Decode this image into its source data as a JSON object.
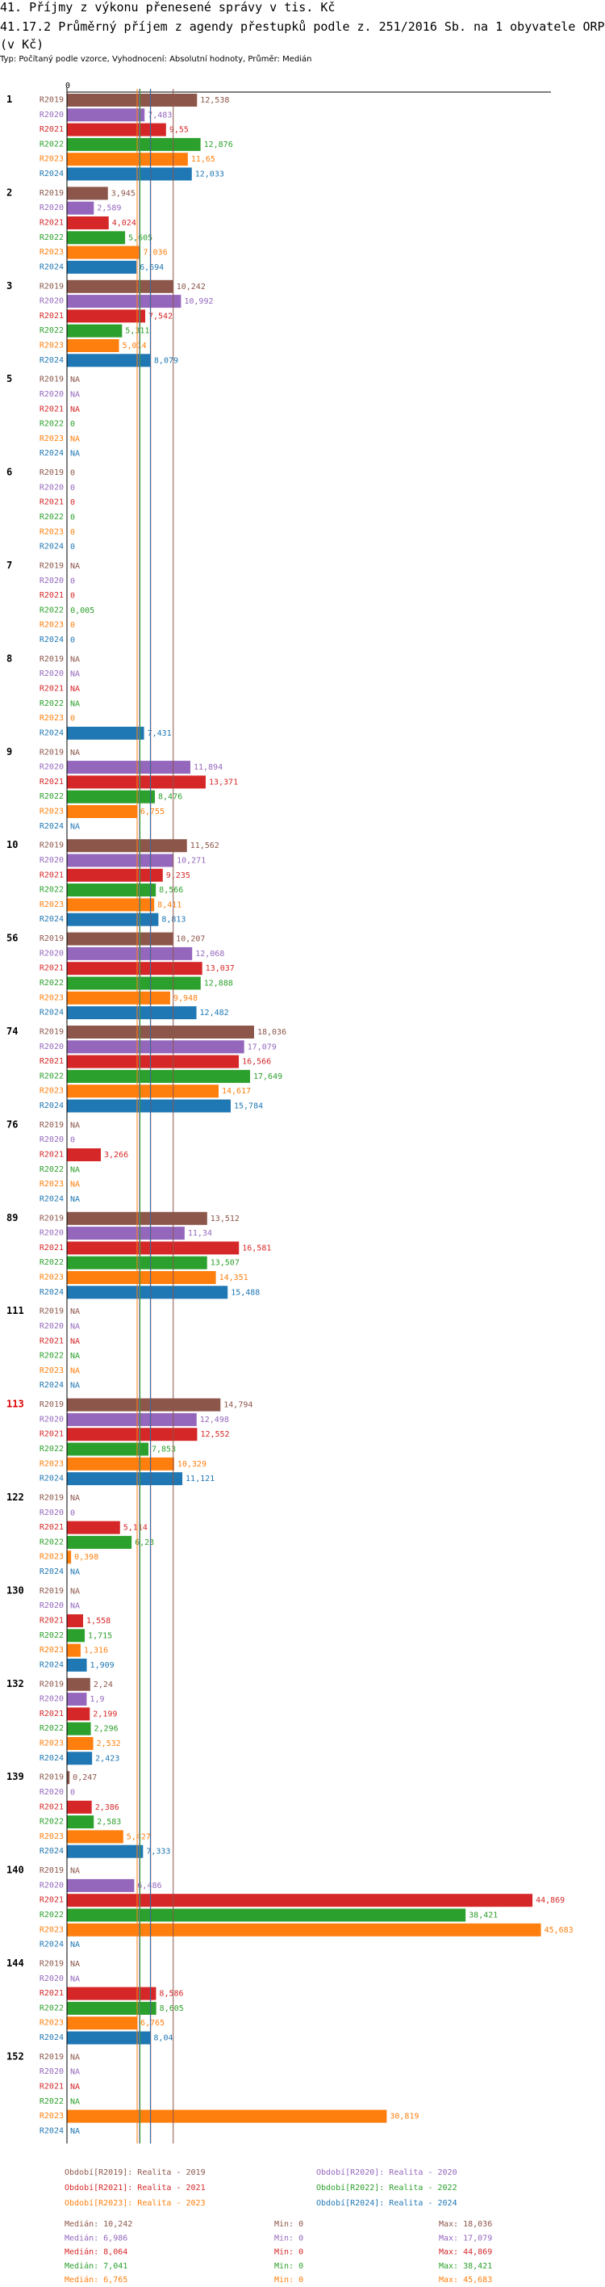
{
  "header": {
    "title": "41. Příjmy z výkonu přenesené správy v tis. Kč",
    "subtitle": "41.17.2 Průměrný příjem z agendy přestupků podle z. 251/2016 Sb. na 1 obyvatele ORP (v Kč)",
    "type_line": "Typ: Počítaný podle vzorce, Vyhodnocení: Absolutní hodnoty, Průměr: Medián"
  },
  "chart_data": {
    "type": "bar",
    "orientation": "horizontal",
    "axis_zero_label": "0",
    "xlim": [
      0,
      46.65
    ],
    "series": [
      {
        "key": "R2019",
        "color": "#8c564b"
      },
      {
        "key": "R2020",
        "color": "#9467bd"
      },
      {
        "key": "R2021",
        "color": "#d62728"
      },
      {
        "key": "R2022",
        "color": "#2ca02c"
      },
      {
        "key": "R2023",
        "color": "#ff7f0e"
      },
      {
        "key": "R2024",
        "color": "#1f77b4"
      }
    ],
    "groups": [
      {
        "label": "1",
        "highlight": false,
        "values": [
          "12,538",
          "7,483",
          "9,55",
          "12,876",
          "11,65",
          "12,033"
        ]
      },
      {
        "label": "2",
        "highlight": false,
        "values": [
          "3,945",
          "2,589",
          "4,024",
          "5,605",
          "7,036",
          "6,694"
        ]
      },
      {
        "label": "3",
        "highlight": false,
        "values": [
          "10,242",
          "10,992",
          "7,542",
          "5,311",
          "5,014",
          "8,079"
        ]
      },
      {
        "label": "5",
        "highlight": false,
        "values": [
          "NA",
          "NA",
          "NA",
          "0",
          "NA",
          "NA"
        ]
      },
      {
        "label": "6",
        "highlight": false,
        "values": [
          "0",
          "0",
          "0",
          "0",
          "0",
          "0"
        ]
      },
      {
        "label": "7",
        "highlight": false,
        "values": [
          "NA",
          "0",
          "0",
          "0,005",
          "0",
          "0"
        ]
      },
      {
        "label": "8",
        "highlight": false,
        "values": [
          "NA",
          "NA",
          "NA",
          "NA",
          "0",
          "7,431"
        ]
      },
      {
        "label": "9",
        "highlight": false,
        "values": [
          "NA",
          "11,894",
          "13,371",
          "8,476",
          "6,755",
          "NA"
        ]
      },
      {
        "label": "10",
        "highlight": false,
        "values": [
          "11,562",
          "10,271",
          "9,235",
          "8,566",
          "8,411",
          "8,813"
        ]
      },
      {
        "label": "56",
        "highlight": false,
        "values": [
          "10,207",
          "12,068",
          "13,037",
          "12,888",
          "9,948",
          "12,482"
        ]
      },
      {
        "label": "74",
        "highlight": false,
        "values": [
          "18,036",
          "17,079",
          "16,566",
          "17,649",
          "14,617",
          "15,784"
        ]
      },
      {
        "label": "76",
        "highlight": false,
        "values": [
          "NA",
          "0",
          "3,266",
          "NA",
          "NA",
          "NA"
        ]
      },
      {
        "label": "89",
        "highlight": false,
        "values": [
          "13,512",
          "11,34",
          "16,581",
          "13,507",
          "14,351",
          "15,488"
        ]
      },
      {
        "label": "111",
        "highlight": false,
        "values": [
          "NA",
          "NA",
          "NA",
          "NA",
          "NA",
          "NA"
        ]
      },
      {
        "label": "113",
        "highlight": true,
        "values": [
          "14,794",
          "12,498",
          "12,552",
          "7,853",
          "10,329",
          "11,121"
        ]
      },
      {
        "label": "122",
        "highlight": false,
        "values": [
          "NA",
          "0",
          "5,114",
          "6,23",
          "0,398",
          "NA"
        ]
      },
      {
        "label": "130",
        "highlight": false,
        "values": [
          "NA",
          "NA",
          "1,558",
          "1,715",
          "1,316",
          "1,909"
        ]
      },
      {
        "label": "132",
        "highlight": false,
        "values": [
          "2,24",
          "1,9",
          "2,199",
          "2,296",
          "2,532",
          "2,423"
        ]
      },
      {
        "label": "139",
        "highlight": false,
        "values": [
          "0,247",
          "0",
          "2,386",
          "2,583",
          "5,427",
          "7,333"
        ]
      },
      {
        "label": "140",
        "highlight": false,
        "values": [
          "NA",
          "6,486",
          "44,869",
          "38,421",
          "45,683",
          "NA"
        ]
      },
      {
        "label": "144",
        "highlight": false,
        "values": [
          "NA",
          "NA",
          "8,586",
          "8,605",
          "6,765",
          "8,04"
        ]
      },
      {
        "label": "152",
        "highlight": false,
        "values": [
          "NA",
          "NA",
          "NA",
          "NA",
          "30,819",
          "NA"
        ]
      }
    ],
    "median_lines": [
      10.242,
      6.986,
      8.064,
      7.041,
      6.765,
      8.04
    ],
    "legend": [
      "Období[R2019]: Realita - 2019",
      "Období[R2020]: Realita - 2020",
      "Období[R2021]: Realita - 2021",
      "Období[R2022]: Realita - 2022",
      "Období[R2023]: Realita - 2023",
      "Období[R2024]: Realita - 2024"
    ],
    "stats": [
      {
        "median": "Medián: 10,242",
        "min": "Min: 0",
        "max": "Max: 18,036"
      },
      {
        "median": "Medián: 6,986",
        "min": "Min: 0",
        "max": "Max: 17,079"
      },
      {
        "median": "Medián: 8,064",
        "min": "Min: 0",
        "max": "Max: 44,869"
      },
      {
        "median": "Medián: 7,041",
        "min": "Min: 0",
        "max": "Max: 38,421"
      },
      {
        "median": "Medián: 6,765",
        "min": "Min: 0",
        "max": "Max: 45,683"
      },
      {
        "median": "Medián: 8,04",
        "min": "Min: 0",
        "max": "Max: 15,784"
      }
    ]
  }
}
